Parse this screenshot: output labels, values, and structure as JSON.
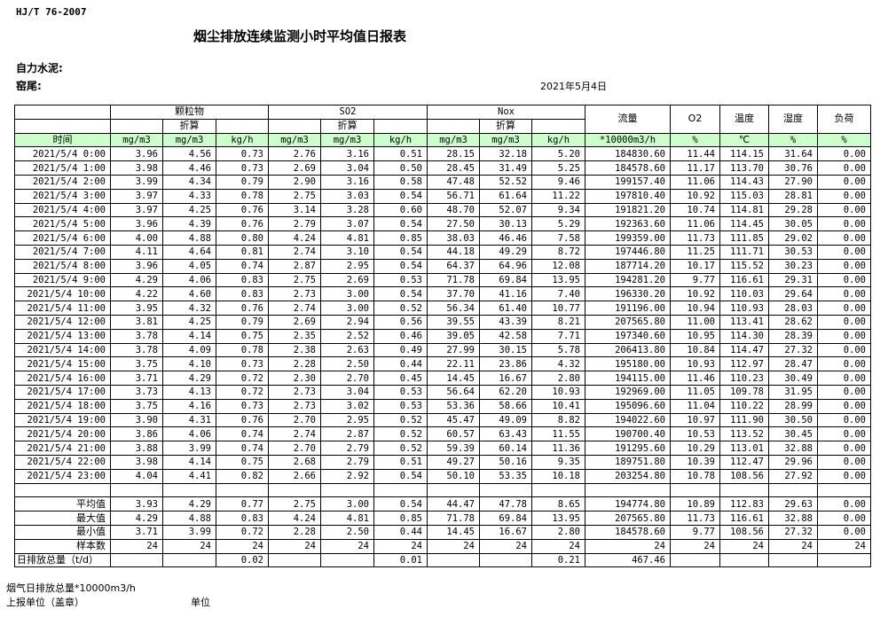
{
  "header": {
    "standard": "HJ/T  76-2007",
    "title": "烟尘排放连续监测小时平均值日报表",
    "company": "自力水泥:",
    "kiln": "窑尾:",
    "date": "2021年5月4日"
  },
  "groups": {
    "particulate": "颗粒物",
    "so2": "SO2",
    "nox": "Nox",
    "converted": "折算",
    "flow": "流量",
    "o2": "O2",
    "temperature": "温度",
    "humidity": "湿度",
    "load": "负荷"
  },
  "units": [
    "时间",
    "mg/m3",
    "mg/m3",
    "kg/h",
    "mg/m3",
    "mg/m3",
    "kg/h",
    "mg/m3",
    "mg/m3",
    "kg/h",
    "*10000m3/h",
    "%",
    "℃",
    "%",
    "%"
  ],
  "rows": [
    [
      "2021/5/4 0:00",
      "3.96",
      "4.56",
      "0.73",
      "2.76",
      "3.16",
      "0.51",
      "28.15",
      "32.18",
      "5.20",
      "184830.60",
      "11.44",
      "114.15",
      "31.64",
      "0.00"
    ],
    [
      "2021/5/4 1:00",
      "3.98",
      "4.46",
      "0.73",
      "2.69",
      "3.04",
      "0.50",
      "28.45",
      "31.49",
      "5.25",
      "184578.60",
      "11.17",
      "113.70",
      "30.76",
      "0.00"
    ],
    [
      "2021/5/4 2:00",
      "3.99",
      "4.34",
      "0.79",
      "2.90",
      "3.16",
      "0.58",
      "47.48",
      "52.52",
      "9.46",
      "199157.40",
      "11.06",
      "114.43",
      "27.90",
      "0.00"
    ],
    [
      "2021/5/4 3:00",
      "3.97",
      "4.33",
      "0.78",
      "2.75",
      "3.03",
      "0.54",
      "56.71",
      "61.64",
      "11.22",
      "197810.40",
      "10.92",
      "115.03",
      "28.81",
      "0.00"
    ],
    [
      "2021/5/4 4:00",
      "3.97",
      "4.25",
      "0.76",
      "3.14",
      "3.28",
      "0.60",
      "48.70",
      "52.07",
      "9.34",
      "191821.20",
      "10.74",
      "114.81",
      "29.28",
      "0.00"
    ],
    [
      "2021/5/4 5:00",
      "3.96",
      "4.39",
      "0.76",
      "2.79",
      "3.07",
      "0.54",
      "27.50",
      "30.13",
      "5.29",
      "192363.60",
      "11.06",
      "114.45",
      "30.05",
      "0.00"
    ],
    [
      "2021/5/4 6:00",
      "4.00",
      "4.88",
      "0.80",
      "4.24",
      "4.81",
      "0.85",
      "38.03",
      "46.46",
      "7.58",
      "199359.00",
      "11.73",
      "111.85",
      "29.02",
      "0.00"
    ],
    [
      "2021/5/4 7:00",
      "4.11",
      "4.64",
      "0.81",
      "2.74",
      "3.10",
      "0.54",
      "44.18",
      "49.29",
      "8.72",
      "197446.80",
      "11.25",
      "111.71",
      "30.53",
      "0.00"
    ],
    [
      "2021/5/4 8:00",
      "3.96",
      "4.05",
      "0.74",
      "2.87",
      "2.95",
      "0.54",
      "64.37",
      "64.96",
      "12.08",
      "187714.20",
      "10.17",
      "115.52",
      "30.23",
      "0.00"
    ],
    [
      "2021/5/4 9:00",
      "4.29",
      "4.06",
      "0.83",
      "2.75",
      "2.69",
      "0.53",
      "71.78",
      "69.84",
      "13.95",
      "194281.20",
      "9.77",
      "116.61",
      "29.31",
      "0.00"
    ],
    [
      "2021/5/4 10:00",
      "4.22",
      "4.60",
      "0.83",
      "2.73",
      "3.00",
      "0.54",
      "37.70",
      "41.16",
      "7.40",
      "196330.20",
      "10.92",
      "110.03",
      "29.64",
      "0.00"
    ],
    [
      "2021/5/4 11:00",
      "3.95",
      "4.32",
      "0.76",
      "2.74",
      "3.00",
      "0.52",
      "56.34",
      "61.40",
      "10.77",
      "191196.00",
      "10.94",
      "110.93",
      "28.03",
      "0.00"
    ],
    [
      "2021/5/4 12:00",
      "3.81",
      "4.25",
      "0.79",
      "2.69",
      "2.94",
      "0.56",
      "39.55",
      "43.39",
      "8.21",
      "207565.80",
      "11.00",
      "113.41",
      "28.62",
      "0.00"
    ],
    [
      "2021/5/4 13:00",
      "3.78",
      "4.14",
      "0.75",
      "2.35",
      "2.52",
      "0.46",
      "39.05",
      "42.58",
      "7.71",
      "197340.60",
      "10.95",
      "114.30",
      "28.39",
      "0.00"
    ],
    [
      "2021/5/4 14:00",
      "3.78",
      "4.09",
      "0.78",
      "2.38",
      "2.63",
      "0.49",
      "27.99",
      "30.15",
      "5.78",
      "206413.80",
      "10.84",
      "114.47",
      "27.32",
      "0.00"
    ],
    [
      "2021/5/4 15:00",
      "3.75",
      "4.10",
      "0.73",
      "2.28",
      "2.50",
      "0.44",
      "22.11",
      "23.86",
      "4.32",
      "195180.00",
      "10.93",
      "112.97",
      "28.47",
      "0.00"
    ],
    [
      "2021/5/4 16:00",
      "3.71",
      "4.29",
      "0.72",
      "2.30",
      "2.70",
      "0.45",
      "14.45",
      "16.67",
      "2.80",
      "194115.00",
      "11.46",
      "110.23",
      "30.49",
      "0.00"
    ],
    [
      "2021/5/4 17:00",
      "3.73",
      "4.13",
      "0.72",
      "2.73",
      "3.04",
      "0.53",
      "56.64",
      "62.20",
      "10.93",
      "192969.00",
      "11.05",
      "109.78",
      "31.95",
      "0.00"
    ],
    [
      "2021/5/4 18:00",
      "3.75",
      "4.16",
      "0.73",
      "2.73",
      "3.02",
      "0.53",
      "53.36",
      "58.66",
      "10.41",
      "195096.60",
      "11.04",
      "110.22",
      "28.99",
      "0.00"
    ],
    [
      "2021/5/4 19:00",
      "3.90",
      "4.31",
      "0.76",
      "2.70",
      "2.95",
      "0.52",
      "45.47",
      "49.09",
      "8.82",
      "194022.60",
      "10.97",
      "111.90",
      "30.50",
      "0.00"
    ],
    [
      "2021/5/4 20:00",
      "3.86",
      "4.06",
      "0.74",
      "2.74",
      "2.87",
      "0.52",
      "60.57",
      "63.43",
      "11.55",
      "190700.40",
      "10.53",
      "113.52",
      "30.45",
      "0.00"
    ],
    [
      "2021/5/4 21:00",
      "3.88",
      "3.99",
      "0.74",
      "2.70",
      "2.79",
      "0.52",
      "59.39",
      "60.14",
      "11.36",
      "191295.60",
      "10.29",
      "113.01",
      "32.88",
      "0.00"
    ],
    [
      "2021/5/4 22:00",
      "3.98",
      "4.14",
      "0.75",
      "2.68",
      "2.79",
      "0.51",
      "49.27",
      "50.16",
      "9.35",
      "189751.80",
      "10.39",
      "112.47",
      "29.96",
      "0.00"
    ],
    [
      "2021/5/4 23:00",
      "4.04",
      "4.41",
      "0.82",
      "2.66",
      "2.92",
      "0.54",
      "50.10",
      "53.35",
      "10.18",
      "203254.80",
      "10.78",
      "108.56",
      "27.92",
      "0.00"
    ]
  ],
  "stats": [
    [
      "平均值",
      "3.93",
      "4.29",
      "0.77",
      "2.75",
      "3.00",
      "0.54",
      "44.47",
      "47.78",
      "8.65",
      "194774.80",
      "10.89",
      "112.83",
      "29.63",
      "0.00"
    ],
    [
      "最大值",
      "4.29",
      "4.88",
      "0.83",
      "4.24",
      "4.81",
      "0.85",
      "71.78",
      "69.84",
      "13.95",
      "207565.80",
      "11.73",
      "116.61",
      "32.88",
      "0.00"
    ],
    [
      "最小值",
      "3.71",
      "3.99",
      "0.72",
      "2.28",
      "2.50",
      "0.44",
      "14.45",
      "16.67",
      "2.80",
      "184578.60",
      "9.77",
      "108.56",
      "27.32",
      "0.00"
    ],
    [
      "样本数",
      "24",
      "24",
      "24",
      "24",
      "24",
      "24",
      "24",
      "24",
      "24",
      "24",
      "24",
      "24",
      "24",
      "24"
    ]
  ],
  "daily_total": [
    "日排放总量（t/d）",
    "",
    "",
    "0.02",
    "",
    "",
    "0.01",
    "",
    "",
    "0.21",
    "467.46",
    "",
    "",
    "",
    ""
  ],
  "footer": {
    "flue_total": "烟气日排放总量*10000m3/h",
    "reporter": "上报单位（盖章）",
    "unit": "单位"
  },
  "colors": {
    "unit_row_bg": "#ccffcc"
  }
}
